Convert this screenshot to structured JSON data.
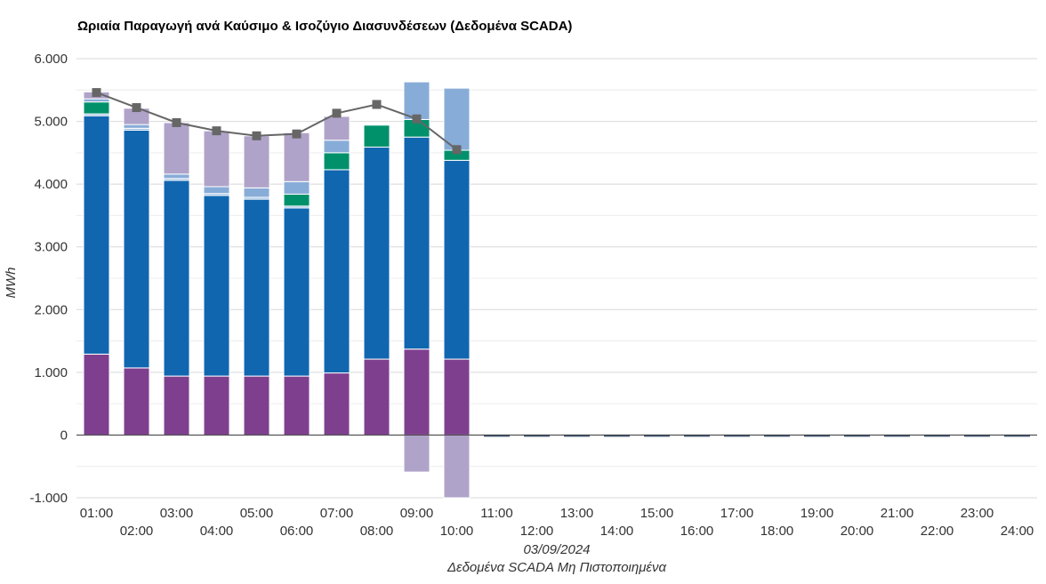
{
  "chart_data": {
    "type": "bar",
    "title": "Ωριαία Παραγωγή ανά Καύσιμο & Ισοζύγιο Διασυνδέσεων (Δεδομένα SCADA)",
    "ylabel": "MWh",
    "xlabel_date": "03/09/2024",
    "xlabel_note": "Δεδομένα SCADA Μη Πιστοποιημένα",
    "ylim": [
      -1000,
      6000
    ],
    "yticks": [
      -1000,
      0,
      1000,
      2000,
      3000,
      4000,
      5000,
      6000
    ],
    "ytick_labels": [
      "-1.000",
      "0",
      "1.000",
      "2.000",
      "3.000",
      "4.000",
      "5.000",
      "6.000"
    ],
    "grid": true,
    "stacked": true,
    "categories": [
      "01:00",
      "02:00",
      "03:00",
      "04:00",
      "05:00",
      "06:00",
      "07:00",
      "08:00",
      "09:00",
      "10:00",
      "11:00",
      "12:00",
      "13:00",
      "14:00",
      "15:00",
      "16:00",
      "17:00",
      "18:00",
      "19:00",
      "20:00",
      "21:00",
      "22:00",
      "23:00",
      "24:00"
    ],
    "series": [
      {
        "color": "#7f3f8f",
        "values": [
          1290,
          1070,
          940,
          940,
          940,
          940,
          990,
          1210,
          1370,
          1210,
          null,
          null,
          null,
          null,
          null,
          null,
          null,
          null,
          null,
          null,
          null,
          null,
          null,
          null
        ]
      },
      {
        "color": "#1166b0",
        "values": [
          3800,
          3790,
          3120,
          2880,
          2820,
          2680,
          3240,
          3380,
          3380,
          3170,
          null,
          null,
          null,
          null,
          null,
          null,
          null,
          null,
          null,
          null,
          null,
          null,
          null,
          null
        ]
      },
      {
        "color": "#93b8dc",
        "values": [
          30,
          30,
          30,
          30,
          30,
          30,
          0,
          0,
          0,
          0,
          null,
          null,
          null,
          null,
          null,
          null,
          null,
          null,
          null,
          null,
          null,
          null,
          null,
          null
        ]
      },
      {
        "color": "#00916b",
        "values": [
          190,
          0,
          0,
          0,
          0,
          190,
          270,
          350,
          280,
          160,
          null,
          null,
          null,
          null,
          null,
          null,
          null,
          null,
          null,
          null,
          null,
          null,
          null,
          null
        ]
      },
      {
        "color": "#88acd8",
        "values": [
          50,
          60,
          70,
          110,
          150,
          200,
          200,
          0,
          600,
          990,
          null,
          null,
          null,
          null,
          null,
          null,
          null,
          null,
          null,
          null,
          null,
          null,
          null,
          null
        ]
      },
      {
        "color": "#b0a3c9",
        "values": [
          110,
          260,
          820,
          890,
          830,
          780,
          380,
          0,
          0,
          0,
          null,
          null,
          null,
          null,
          null,
          null,
          null,
          null,
          null,
          null,
          null,
          null,
          null,
          null
        ]
      },
      {
        "color": "#b0a3c9",
        "values": [
          0,
          0,
          0,
          0,
          0,
          0,
          0,
          0,
          -590,
          -1000,
          null,
          null,
          null,
          null,
          null,
          null,
          null,
          null,
          null,
          null,
          null,
          null,
          null,
          null
        ]
      }
    ],
    "line": {
      "color": "#666666",
      "values": [
        5460,
        5220,
        4980,
        4850,
        4770,
        4800,
        5130,
        5270,
        5040,
        4550,
        null,
        null,
        null,
        null,
        null,
        null,
        null,
        null,
        null,
        null,
        null,
        null,
        null,
        null
      ]
    }
  }
}
